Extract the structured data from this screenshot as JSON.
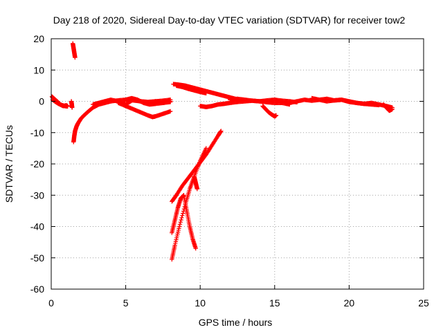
{
  "chart_data": {
    "type": "scatter",
    "title": "Day 218 of 2020, Sidereal Day-to-day VTEC variation (SDTVAR) for receiver tow2",
    "xlabel": "GPS time / hours",
    "ylabel": "SDTVAR / TECUs",
    "xlim": [
      0,
      25
    ],
    "ylim": [
      -60,
      20
    ],
    "xticks": [
      "0",
      "5",
      "10",
      "15",
      "20",
      "25"
    ],
    "yticks": [
      "20",
      "10",
      "0",
      "-10",
      "-20",
      "-30",
      "-40",
      "-50",
      "-60"
    ],
    "grid": true,
    "marker": "plus",
    "color": "#ff0000",
    "segments": [
      {
        "x": [
          0.05,
          0.2,
          0.4,
          0.6,
          0.8,
          1.0,
          1.1
        ],
        "y": [
          1.5,
          0.8,
          0.0,
          -1.0,
          -1.5,
          -1.3,
          -1.5
        ]
      },
      {
        "x": [
          0.1,
          0.3,
          0.5,
          0.7,
          0.9,
          1.1
        ],
        "y": [
          0.5,
          -0.2,
          -0.8,
          -1.2,
          -1.5,
          -1.6
        ]
      },
      {
        "x": [
          1.45,
          1.5,
          1.55,
          1.6
        ],
        "y": [
          18.5,
          17.0,
          15.5,
          14.0
        ]
      },
      {
        "x": [
          1.35,
          1.38,
          1.4
        ],
        "y": [
          0.0,
          -1.0,
          -2.0
        ]
      },
      {
        "x": [
          1.5,
          1.55,
          1.6,
          1.7,
          1.8,
          2.0,
          2.2,
          2.5,
          2.8,
          3.2,
          3.6,
          4.0,
          4.5,
          5.0,
          5.5,
          6.0,
          6.5,
          7.0,
          7.5,
          8.0
        ],
        "y": [
          -13.0,
          -11.0,
          -9.5,
          -8.0,
          -7.0,
          -5.5,
          -4.5,
          -3.2,
          -2.0,
          -1.0,
          -0.5,
          0.0,
          0.3,
          0.5,
          0.3,
          0.0,
          -0.2,
          0.0,
          0.2,
          0.5
        ]
      },
      {
        "x": [
          2.8,
          3.2,
          3.6,
          4.0,
          4.5,
          5.0,
          5.5,
          6.0,
          6.5,
          7.0,
          7.5,
          8.0
        ],
        "y": [
          -1.0,
          -0.5,
          0.0,
          0.5,
          0.0,
          -1.0,
          0.5,
          0.0,
          -0.5,
          0.0,
          -0.5,
          0.0
        ]
      },
      {
        "x": [
          4.5,
          5.0,
          5.5,
          6.0,
          6.5,
          6.8,
          7.0,
          7.5,
          8.0
        ],
        "y": [
          -0.5,
          -1.5,
          -2.5,
          -3.5,
          -4.5,
          -5.0,
          -4.8,
          -4.0,
          -3.2
        ]
      },
      {
        "x": [
          5.0,
          5.4,
          5.8,
          6.2,
          6.6,
          7.0,
          7.5,
          8.0
        ],
        "y": [
          0.5,
          1.0,
          0.5,
          -0.5,
          -1.0,
          -0.8,
          -0.5,
          -0.2
        ]
      },
      {
        "x": [
          8.1,
          8.3,
          8.6,
          9.0,
          9.3,
          9.6,
          10.0,
          10.4
        ],
        "y": [
          -50.5,
          -46.0,
          -40.0,
          -33.0,
          -28.0,
          -24.0,
          -19.0,
          -15.0
        ]
      },
      {
        "x": [
          8.1,
          8.3,
          8.5,
          8.7,
          8.9,
          9.1,
          9.3,
          9.5,
          9.7
        ],
        "y": [
          -42.0,
          -38.0,
          -34.0,
          -31.0,
          -30.0,
          -35.0,
          -40.0,
          -44.0,
          -47.0
        ]
      },
      {
        "x": [
          8.1,
          8.4,
          8.8,
          9.2,
          9.6,
          10.0,
          10.4,
          10.8,
          11.2,
          11.4
        ],
        "y": [
          -32.0,
          -30.0,
          -27.0,
          -24.5,
          -22.0,
          -19.5,
          -17.0,
          -14.0,
          -11.0,
          -9.5
        ]
      },
      {
        "x": [
          9.6,
          9.7,
          9.8
        ],
        "y": [
          -24.0,
          -26.0,
          -28.0
        ]
      },
      {
        "x": [
          8.2,
          8.6,
          9.0,
          9.4,
          9.8,
          10.2,
          10.6,
          11.0,
          11.4,
          11.8,
          12.2,
          12.6
        ],
        "y": [
          5.5,
          5.3,
          5.0,
          4.5,
          4.0,
          3.5,
          3.0,
          2.5,
          2.0,
          1.5,
          1.0,
          0.5
        ]
      },
      {
        "x": [
          8.4,
          8.8,
          9.2,
          9.6,
          10.0,
          10.4
        ],
        "y": [
          5.0,
          4.6,
          4.0,
          3.5,
          3.0,
          2.6
        ]
      },
      {
        "x": [
          10.0,
          10.4,
          10.8,
          11.2,
          11.6,
          12.0,
          12.5,
          13.0,
          13.5,
          14.0,
          14.5,
          15.0,
          15.5,
          16.0
        ],
        "y": [
          -1.5,
          -1.8,
          -1.5,
          -1.0,
          -0.8,
          -0.5,
          -0.2,
          0.0,
          0.2,
          0.0,
          -0.3,
          -0.5,
          -0.5,
          -1.0
        ]
      },
      {
        "x": [
          12.0,
          12.5,
          13.0,
          13.5,
          14.0,
          14.5,
          15.0,
          15.5,
          16.0,
          16.5
        ],
        "y": [
          0.5,
          0.8,
          0.5,
          0.2,
          0.0,
          0.3,
          0.5,
          0.2,
          0.0,
          -0.3
        ]
      },
      {
        "x": [
          14.2,
          14.4,
          14.6,
          14.8,
          15.0,
          15.1
        ],
        "y": [
          -1.5,
          -2.5,
          -3.5,
          -4.2,
          -4.8,
          -4.5
        ]
      },
      {
        "x": [
          16.0,
          16.5,
          17.0,
          17.5,
          18.0,
          18.5,
          19.0,
          19.5,
          20.0,
          20.5,
          21.0,
          21.5,
          22.0
        ],
        "y": [
          -0.5,
          0.0,
          0.5,
          0.2,
          0.5,
          0.0,
          0.3,
          0.5,
          0.0,
          -0.5,
          -0.8,
          -1.0,
          -1.2
        ]
      },
      {
        "x": [
          17.5,
          18.0,
          18.5,
          19.0,
          19.5,
          20.0,
          20.5,
          21.0,
          21.5,
          22.0,
          22.5,
          22.9
        ],
        "y": [
          1.0,
          0.5,
          0.8,
          0.3,
          0.5,
          -0.2,
          -0.5,
          -0.8,
          -0.5,
          -1.0,
          -1.5,
          -2.0
        ]
      },
      {
        "x": [
          22.3,
          22.5,
          22.7,
          22.9
        ],
        "y": [
          -1.0,
          -2.0,
          -3.0,
          -2.5
        ]
      }
    ]
  }
}
